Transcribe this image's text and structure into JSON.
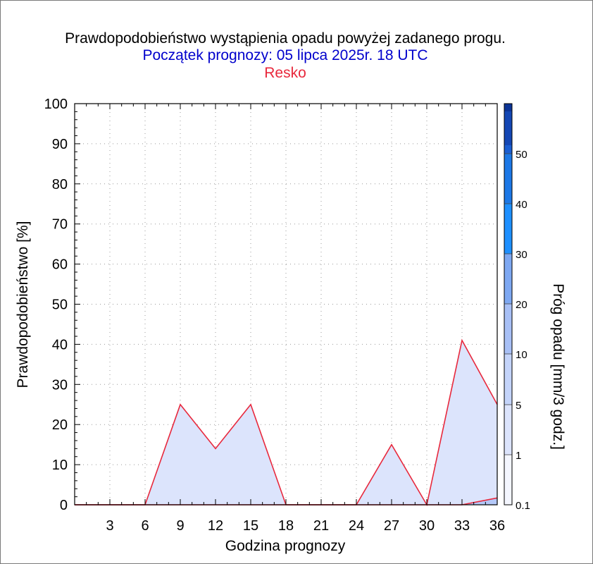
{
  "chart_data": {
    "type": "area",
    "title": "Prawdopodobieństwo wystąpienia opadu powyżej zadanego progu.",
    "subtitle": "Początek prognozy: 05 lipca 2025r. 18 UTC",
    "location": "Resko",
    "xlabel": "Godzina prognozy",
    "ylabel": "Prawdopodobieństwo [%]",
    "colorbar_label": "Próg opadu [mm/3 godz.]",
    "xlim": [
      0,
      36
    ],
    "ylim": [
      0,
      100
    ],
    "x_ticks": [
      "3",
      "6",
      "9",
      "12",
      "15",
      "18",
      "21",
      "24",
      "27",
      "30",
      "33",
      "36"
    ],
    "y_ticks": [
      "0",
      "10",
      "20",
      "30",
      "40",
      "50",
      "60",
      "70",
      "80",
      "90",
      "100"
    ],
    "grid": true,
    "series": [
      {
        "threshold": "0.1",
        "color": "#dce4fc",
        "x": [
          0,
          3,
          6,
          9,
          12,
          15,
          18,
          21,
          24,
          27,
          30,
          33,
          36
        ],
        "values": [
          0,
          0,
          0,
          25,
          14,
          25,
          0,
          0,
          0,
          15,
          0,
          41,
          25
        ]
      },
      {
        "threshold": "1",
        "color": "#b4c8f8",
        "x": [
          0,
          3,
          6,
          9,
          12,
          15,
          18,
          21,
          24,
          27,
          30,
          33,
          36
        ],
        "values": [
          0,
          0,
          0,
          0,
          0,
          0,
          0,
          0,
          0,
          0,
          0,
          0,
          1.7
        ]
      }
    ],
    "colorbar": {
      "levels": [
        "0.1",
        "1",
        "5",
        "10",
        "20",
        "30",
        "40",
        "50"
      ],
      "colors": [
        "#f4f6fe",
        "#dce4fc",
        "#c4d4fa",
        "#a8c0f6",
        "#7ea8f2",
        "#1e90ff",
        "#1c78e6",
        "#1a5ed2",
        "#1447b4",
        "#0c3496"
      ],
      "line_color": "#e8283c"
    }
  }
}
